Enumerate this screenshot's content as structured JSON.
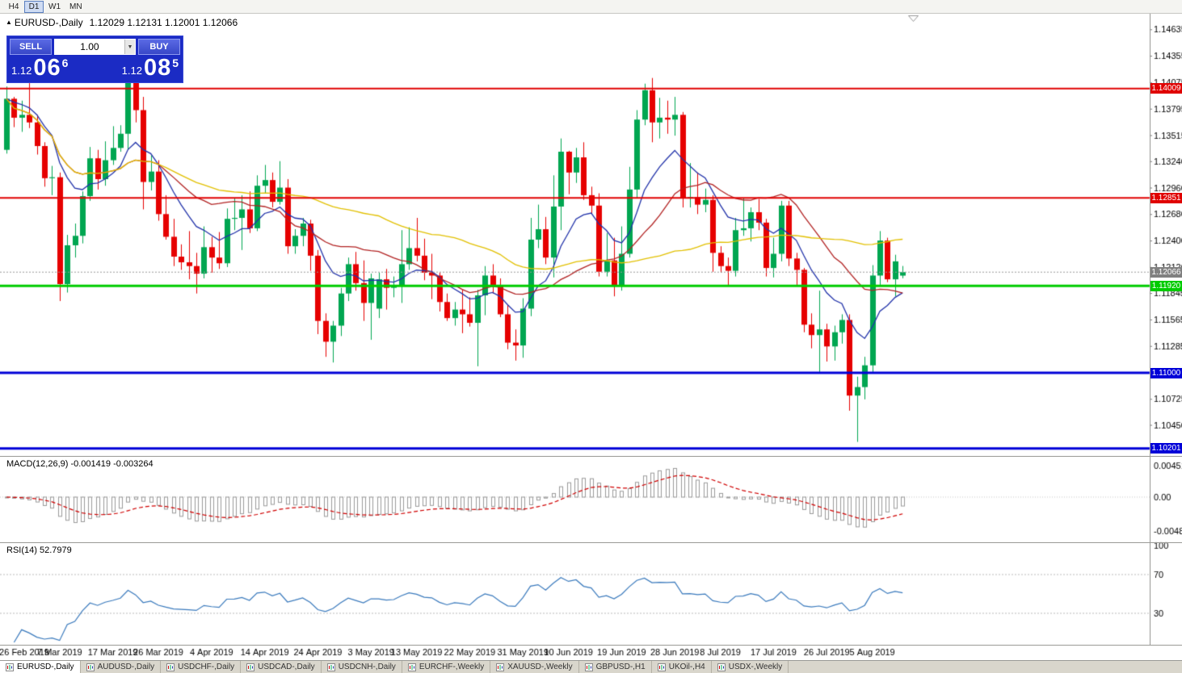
{
  "icons": {
    "chart_arrow": "▲",
    "dropdown": "▼"
  },
  "toolbar": {
    "timeframes": [
      {
        "label": "H4",
        "active": false
      },
      {
        "label": "D1",
        "active": true
      },
      {
        "label": "W1",
        "active": false
      },
      {
        "label": "MN",
        "active": false
      }
    ]
  },
  "chart": {
    "title": "EURUSD-,Daily",
    "ohlc_line": "1.12029 1.12131 1.12001 1.12066"
  },
  "trade_panel": {
    "sell_label": "SELL",
    "buy_label": "BUY",
    "volume": "1.00",
    "sell_price": {
      "small": "1.12",
      "big": "06",
      "sup": "6"
    },
    "buy_price": {
      "small": "1.12",
      "big": "08",
      "sup": "5"
    }
  },
  "price_axis": {
    "ticks": [
      1.14635,
      1.14355,
      1.14075,
      1.13795,
      1.13515,
      1.1324,
      1.1296,
      1.1268,
      1.124,
      1.1212,
      1.11845,
      1.11565,
      1.11285,
      1.10725,
      1.1045
    ]
  },
  "macd": {
    "header": "MACD(12,26,9) -0.001419 -0.003264",
    "params": [
      12,
      26,
      9
    ],
    "axis_labels": [
      {
        "text": "0.004517",
        "value": 0.004517
      },
      {
        "text": "0.00",
        "value": 0
      },
      {
        "text": "-0.004806",
        "value": -0.004806
      }
    ]
  },
  "rsi": {
    "header": "RSI(14) 52.7979",
    "period": 14,
    "axis_labels": [
      {
        "text": "100",
        "value": 100
      },
      {
        "text": "70",
        "value": 70
      },
      {
        "text": "30",
        "value": 30
      }
    ],
    "levels": [
      70,
      30
    ]
  },
  "date_axis": [
    {
      "label": "26 Feb 2019",
      "index": 0
    },
    {
      "label": "7 Mar 2019",
      "index": 7
    },
    {
      "label": "17 Mar 2019",
      "index": 14
    },
    {
      "label": "26 Mar 2019",
      "index": 20
    },
    {
      "label": "4 Apr 2019",
      "index": 27
    },
    {
      "label": "14 Apr 2019",
      "index": 34
    },
    {
      "label": "24 Apr 2019",
      "index": 41
    },
    {
      "label": "3 May 2019",
      "index": 48
    },
    {
      "label": "13 May 2019",
      "index": 54
    },
    {
      "label": "22 May 2019",
      "index": 61
    },
    {
      "label": "31 May 2019",
      "index": 68
    },
    {
      "label": "10 Jun 2019",
      "index": 74
    },
    {
      "label": "19 Jun 2019",
      "index": 81
    },
    {
      "label": "28 Jun 2019",
      "index": 88
    },
    {
      "label": "8 Jul 2019",
      "index": 94
    },
    {
      "label": "17 Jul 2019",
      "index": 101
    },
    {
      "label": "26 Jul 2019",
      "index": 108
    },
    {
      "label": "5 Aug 2019",
      "index": 114
    }
  ],
  "tabs": [
    {
      "label": "EURUSD-,Daily",
      "active": true
    },
    {
      "label": "AUDUSD-,Daily",
      "active": false
    },
    {
      "label": "USDCHF-,Daily",
      "active": false
    },
    {
      "label": "USDCAD-,Daily",
      "active": false
    },
    {
      "label": "USDCNH-,Daily",
      "active": false
    },
    {
      "label": "EURCHF-,Weekly",
      "active": false
    },
    {
      "label": "XAUUSD-,Weekly",
      "active": false
    },
    {
      "label": "GBPUSD-,H1",
      "active": false
    },
    {
      "label": "UKOil-,H4",
      "active": false
    },
    {
      "label": "USDX-,Weekly",
      "active": false
    }
  ],
  "chart_data": {
    "type": "candlestick",
    "symbol": "EURUSD-",
    "timeframe": "Daily",
    "ylim": [
      1.1013,
      1.148
    ],
    "colors": {
      "up": "#00a651",
      "down": "#e60000",
      "histogram": "#9a9a9a",
      "signal": "#d00000",
      "rsi_line": "#3a7abd",
      "current_line": "#9a9a9a"
    },
    "moving_averages": [
      {
        "period": 10,
        "method": "ema",
        "color": "#2233aa"
      },
      {
        "period": 21,
        "method": "sma",
        "color": "#b22222"
      },
      {
        "period": 50,
        "method": "sma",
        "color": "#e2c000"
      }
    ],
    "hlines": [
      {
        "value": 1.14009,
        "label": "1.14009",
        "color": "#e00000",
        "width": 2
      },
      {
        "value": 1.12851,
        "label": "1.12851",
        "color": "#e00000",
        "width": 2
      },
      {
        "value": 1.1192,
        "label": "1.11920",
        "color": "#00cc00",
        "width": 3
      },
      {
        "value": 1.11,
        "label": "1.11000",
        "color": "#0000d8",
        "width": 3
      },
      {
        "value": 1.10201,
        "label": "1.10201",
        "color": "#0000d8",
        "width": 3
      }
    ],
    "current_price": {
      "value": 1.12066,
      "label": "1.12066",
      "tag_color": "#808080"
    },
    "candles": [
      [
        1.1336,
        1.1403,
        1.1332,
        1.139
      ],
      [
        1.139,
        1.1392,
        1.136,
        1.137
      ],
      [
        1.137,
        1.1388,
        1.1355,
        1.1373
      ],
      [
        1.1373,
        1.1407,
        1.1359,
        1.1365
      ],
      [
        1.1365,
        1.1373,
        1.1331,
        1.134
      ],
      [
        1.134,
        1.1344,
        1.1297,
        1.1306
      ],
      [
        1.1306,
        1.1319,
        1.1288,
        1.1307
      ],
      [
        1.1307,
        1.1312,
        1.1176,
        1.1194
      ],
      [
        1.1194,
        1.1246,
        1.1185,
        1.1235
      ],
      [
        1.1235,
        1.1258,
        1.1222,
        1.1245
      ],
      [
        1.1245,
        1.1292,
        1.1237,
        1.1287
      ],
      [
        1.1287,
        1.1339,
        1.1282,
        1.1327
      ],
      [
        1.1327,
        1.1336,
        1.1294,
        1.1305
      ],
      [
        1.1305,
        1.1345,
        1.1298,
        1.1325
      ],
      [
        1.1325,
        1.1361,
        1.132,
        1.1338
      ],
      [
        1.1338,
        1.1362,
        1.1334,
        1.1353
      ],
      [
        1.1353,
        1.1448,
        1.1336,
        1.1415
      ],
      [
        1.1415,
        1.1438,
        1.1365,
        1.1378
      ],
      [
        1.1378,
        1.1392,
        1.1273,
        1.1302
      ],
      [
        1.1302,
        1.133,
        1.1293,
        1.1313
      ],
      [
        1.1313,
        1.1325,
        1.1261,
        1.1268
      ],
      [
        1.1268,
        1.1288,
        1.1241,
        1.1244
      ],
      [
        1.1244,
        1.1263,
        1.1213,
        1.1223
      ],
      [
        1.1223,
        1.1236,
        1.1209,
        1.1217
      ],
      [
        1.1217,
        1.125,
        1.1199,
        1.1213
      ],
      [
        1.1213,
        1.1227,
        1.1184,
        1.1205
      ],
      [
        1.1205,
        1.1255,
        1.12,
        1.1233
      ],
      [
        1.1233,
        1.1244,
        1.1206,
        1.1222
      ],
      [
        1.1222,
        1.1249,
        1.121,
        1.1216
      ],
      [
        1.1216,
        1.1274,
        1.1212,
        1.1263
      ],
      [
        1.1263,
        1.1285,
        1.1251,
        1.1264
      ],
      [
        1.1264,
        1.1288,
        1.123,
        1.1273
      ],
      [
        1.1273,
        1.1292,
        1.1248,
        1.1253
      ],
      [
        1.1253,
        1.1309,
        1.125,
        1.1298
      ],
      [
        1.1298,
        1.132,
        1.129,
        1.1304
      ],
      [
        1.1304,
        1.1312,
        1.1275,
        1.1281
      ],
      [
        1.1281,
        1.1324,
        1.1278,
        1.1296
      ],
      [
        1.1296,
        1.1305,
        1.1226,
        1.1234
      ],
      [
        1.1234,
        1.1252,
        1.1226,
        1.1245
      ],
      [
        1.1245,
        1.1264,
        1.1234,
        1.1258
      ],
      [
        1.1258,
        1.1262,
        1.1208,
        1.1224
      ],
      [
        1.1224,
        1.123,
        1.1141,
        1.1155
      ],
      [
        1.1155,
        1.1163,
        1.1117,
        1.1133
      ],
      [
        1.1133,
        1.1155,
        1.1111,
        1.115
      ],
      [
        1.115,
        1.119,
        1.1139,
        1.1184
      ],
      [
        1.1184,
        1.1222,
        1.1176,
        1.1215
      ],
      [
        1.1215,
        1.1228,
        1.1187,
        1.1195
      ],
      [
        1.1195,
        1.1219,
        1.1155,
        1.1174
      ],
      [
        1.1174,
        1.1205,
        1.1135,
        1.12
      ],
      [
        1.1168,
        1.1206,
        1.1158,
        1.1199
      ],
      [
        1.1199,
        1.121,
        1.1167,
        1.119
      ],
      [
        1.119,
        1.1202,
        1.118,
        1.1193
      ],
      [
        1.1193,
        1.1251,
        1.1174,
        1.1215
      ],
      [
        1.1215,
        1.1254,
        1.1209,
        1.1232
      ],
      [
        1.1232,
        1.1264,
        1.1218,
        1.1224
      ],
      [
        1.1224,
        1.1242,
        1.1198,
        1.1206
      ],
      [
        1.1206,
        1.1226,
        1.1178,
        1.1203
      ],
      [
        1.1203,
        1.1206,
        1.1165,
        1.1175
      ],
      [
        1.1175,
        1.1184,
        1.1155,
        1.1158
      ],
      [
        1.1158,
        1.1175,
        1.115,
        1.1167
      ],
      [
        1.1167,
        1.1188,
        1.1142,
        1.1162
      ],
      [
        1.1162,
        1.118,
        1.1149,
        1.1153
      ],
      [
        1.1153,
        1.1188,
        1.1107,
        1.1182
      ],
      [
        1.1182,
        1.1213,
        1.1161,
        1.1203
      ],
      [
        1.1203,
        1.1215,
        1.1184,
        1.1193
      ],
      [
        1.1193,
        1.12,
        1.1159,
        1.1162
      ],
      [
        1.1162,
        1.1172,
        1.1125,
        1.1132
      ],
      [
        1.1132,
        1.1146,
        1.1113,
        1.1129
      ],
      [
        1.1129,
        1.1179,
        1.1116,
        1.1168
      ],
      [
        1.1168,
        1.1264,
        1.116,
        1.1241
      ],
      [
        1.1241,
        1.1278,
        1.1232,
        1.1252
      ],
      [
        1.1252,
        1.1265,
        1.1215,
        1.1222
      ],
      [
        1.1222,
        1.1309,
        1.1201,
        1.1276
      ],
      [
        1.1276,
        1.1348,
        1.1251,
        1.1334
      ],
      [
        1.1334,
        1.1335,
        1.1289,
        1.1312
      ],
      [
        1.1312,
        1.1338,
        1.1301,
        1.1328
      ],
      [
        1.1328,
        1.1344,
        1.1283,
        1.1288
      ],
      [
        1.1288,
        1.1297,
        1.1268,
        1.1277
      ],
      [
        1.1277,
        1.129,
        1.1202,
        1.1207
      ],
      [
        1.1207,
        1.1248,
        1.1202,
        1.1219
      ],
      [
        1.1219,
        1.1243,
        1.1181,
        1.1193
      ],
      [
        1.1193,
        1.1255,
        1.1187,
        1.1226
      ],
      [
        1.1226,
        1.1318,
        1.1222,
        1.1294
      ],
      [
        1.1294,
        1.1378,
        1.1285,
        1.1368
      ],
      [
        1.1368,
        1.1406,
        1.1362,
        1.1399
      ],
      [
        1.1399,
        1.1412,
        1.1344,
        1.1365
      ],
      [
        1.1365,
        1.1391,
        1.1348,
        1.137
      ],
      [
        1.137,
        1.1388,
        1.1353,
        1.1368
      ],
      [
        1.1368,
        1.1392,
        1.1351,
        1.1373
      ],
      [
        1.1373,
        1.1376,
        1.1275,
        1.1285
      ],
      [
        1.1285,
        1.1322,
        1.1275,
        1.1286
      ],
      [
        1.1286,
        1.1312,
        1.1268,
        1.1278
      ],
      [
        1.1278,
        1.1295,
        1.127,
        1.1283
      ],
      [
        1.1283,
        1.1288,
        1.1207,
        1.1227
      ],
      [
        1.1227,
        1.1234,
        1.1206,
        1.1213
      ],
      [
        1.1213,
        1.1222,
        1.1193,
        1.1208
      ],
      [
        1.1208,
        1.1264,
        1.1202,
        1.1251
      ],
      [
        1.1251,
        1.1285,
        1.1245,
        1.1253
      ],
      [
        1.1253,
        1.1275,
        1.1239,
        1.127
      ],
      [
        1.127,
        1.1284,
        1.1251,
        1.1259
      ],
      [
        1.1259,
        1.1263,
        1.1202,
        1.1211
      ],
      [
        1.1211,
        1.1243,
        1.1201,
        1.1226
      ],
      [
        1.1226,
        1.1282,
        1.1218,
        1.1277
      ],
      [
        1.1277,
        1.1282,
        1.1213,
        1.1221
      ],
      [
        1.1221,
        1.1227,
        1.1192,
        1.1209
      ],
      [
        1.1209,
        1.1211,
        1.1143,
        1.1151
      ],
      [
        1.1151,
        1.1163,
        1.1126,
        1.114
      ],
      [
        1.114,
        1.1187,
        1.1101,
        1.1146
      ],
      [
        1.1146,
        1.1152,
        1.1112,
        1.1128
      ],
      [
        1.1128,
        1.115,
        1.1113,
        1.1143
      ],
      [
        1.1143,
        1.1162,
        1.1131,
        1.1156
      ],
      [
        1.1156,
        1.1162,
        1.106,
        1.1076
      ],
      [
        1.1076,
        1.1096,
        1.1027,
        1.1085
      ],
      [
        1.1085,
        1.1117,
        1.1072,
        1.1108
      ],
      [
        1.1108,
        1.1214,
        1.1101,
        1.1203
      ],
      [
        1.1203,
        1.125,
        1.1192,
        1.124
      ],
      [
        1.124,
        1.1243,
        1.1196,
        1.1199
      ],
      [
        1.1199,
        1.1225,
        1.1181,
        1.1218
      ],
      [
        1.12029,
        1.12131,
        1.12001,
        1.12066
      ]
    ]
  }
}
